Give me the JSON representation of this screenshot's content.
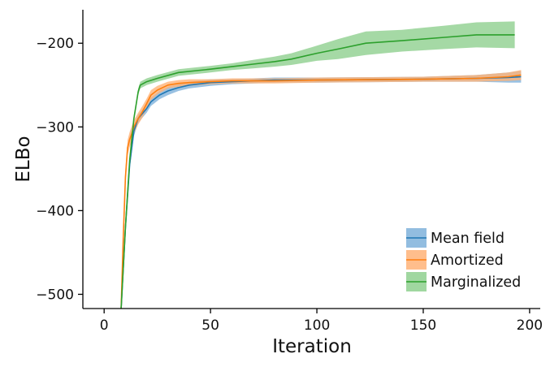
{
  "chart_data": {
    "type": "line",
    "xlabel": "Iteration",
    "ylabel": "ELBo",
    "xlim": [
      -10,
      205
    ],
    "ylim": [
      -517,
      -160
    ],
    "x_ticks": [
      0,
      50,
      100,
      150,
      200
    ],
    "y_ticks": [
      -500,
      -400,
      -300,
      -200
    ],
    "tick_labels": {
      "x": [
        "0",
        "50",
        "100",
        "150",
        "200"
      ],
      "y": [
        "−500",
        "−400",
        "−300",
        "−200"
      ]
    },
    "grid": false,
    "legend_position": "bottom-right",
    "series": [
      {
        "name": "Mean field",
        "color": "#1f77b4",
        "band_color": "#7fb1db",
        "x": [
          8,
          10,
          12,
          14,
          16,
          18,
          20,
          22,
          26,
          30,
          35,
          40,
          50,
          60,
          70,
          80,
          100,
          150,
          175,
          190,
          196
        ],
        "y": [
          -517,
          -420,
          -345,
          -305,
          -290,
          -284,
          -278,
          -270,
          -262,
          -257,
          -253,
          -250,
          -247,
          -246,
          -245,
          -244,
          -244,
          -243,
          -242,
          -241,
          -240
        ],
        "spread": [
          8,
          7,
          6,
          6,
          5,
          5,
          5,
          5,
          5,
          5,
          4,
          4,
          4,
          3,
          3,
          3,
          3,
          3,
          4,
          6,
          7
        ]
      },
      {
        "name": "Amortized",
        "color": "#ff7f0e",
        "band_color": "#ffb378",
        "x": [
          8,
          9,
          10,
          11,
          12,
          13,
          14,
          16,
          18,
          20,
          22,
          25,
          30,
          35,
          40,
          50,
          60,
          80,
          100,
          150,
          175,
          190,
          196
        ],
        "y": [
          -517,
          -430,
          -360,
          -325,
          -315,
          -308,
          -300,
          -290,
          -282,
          -272,
          -262,
          -256,
          -250,
          -248,
          -247,
          -246,
          -245,
          -245,
          -244,
          -243,
          -242,
          -240,
          -238
        ],
        "spread": [
          9,
          9,
          9,
          9,
          9,
          9,
          8,
          7,
          7,
          6,
          6,
          5,
          4,
          4,
          4,
          3,
          3,
          3,
          3,
          3,
          4,
          5,
          6
        ]
      },
      {
        "name": "Marginalized",
        "color": "#2ca02c",
        "band_color": "#8fd08f",
        "x": [
          8,
          10,
          12,
          14,
          16,
          17,
          20,
          25,
          35,
          50,
          60,
          70,
          80,
          88,
          100,
          110,
          123,
          140,
          160,
          175,
          193
        ],
        "y": [
          -517,
          -420,
          -340,
          -290,
          -258,
          -250,
          -246,
          -242,
          -235,
          -231,
          -228,
          -225,
          -222,
          -219,
          -212,
          -207,
          -200,
          -197,
          -193,
          -190,
          -190
        ],
        "spread": [
          4,
          4,
          4,
          4,
          4,
          4,
          4,
          4,
          4,
          4,
          4,
          5,
          6,
          7,
          9,
          12,
          14,
          13,
          14,
          15,
          16
        ]
      }
    ]
  }
}
